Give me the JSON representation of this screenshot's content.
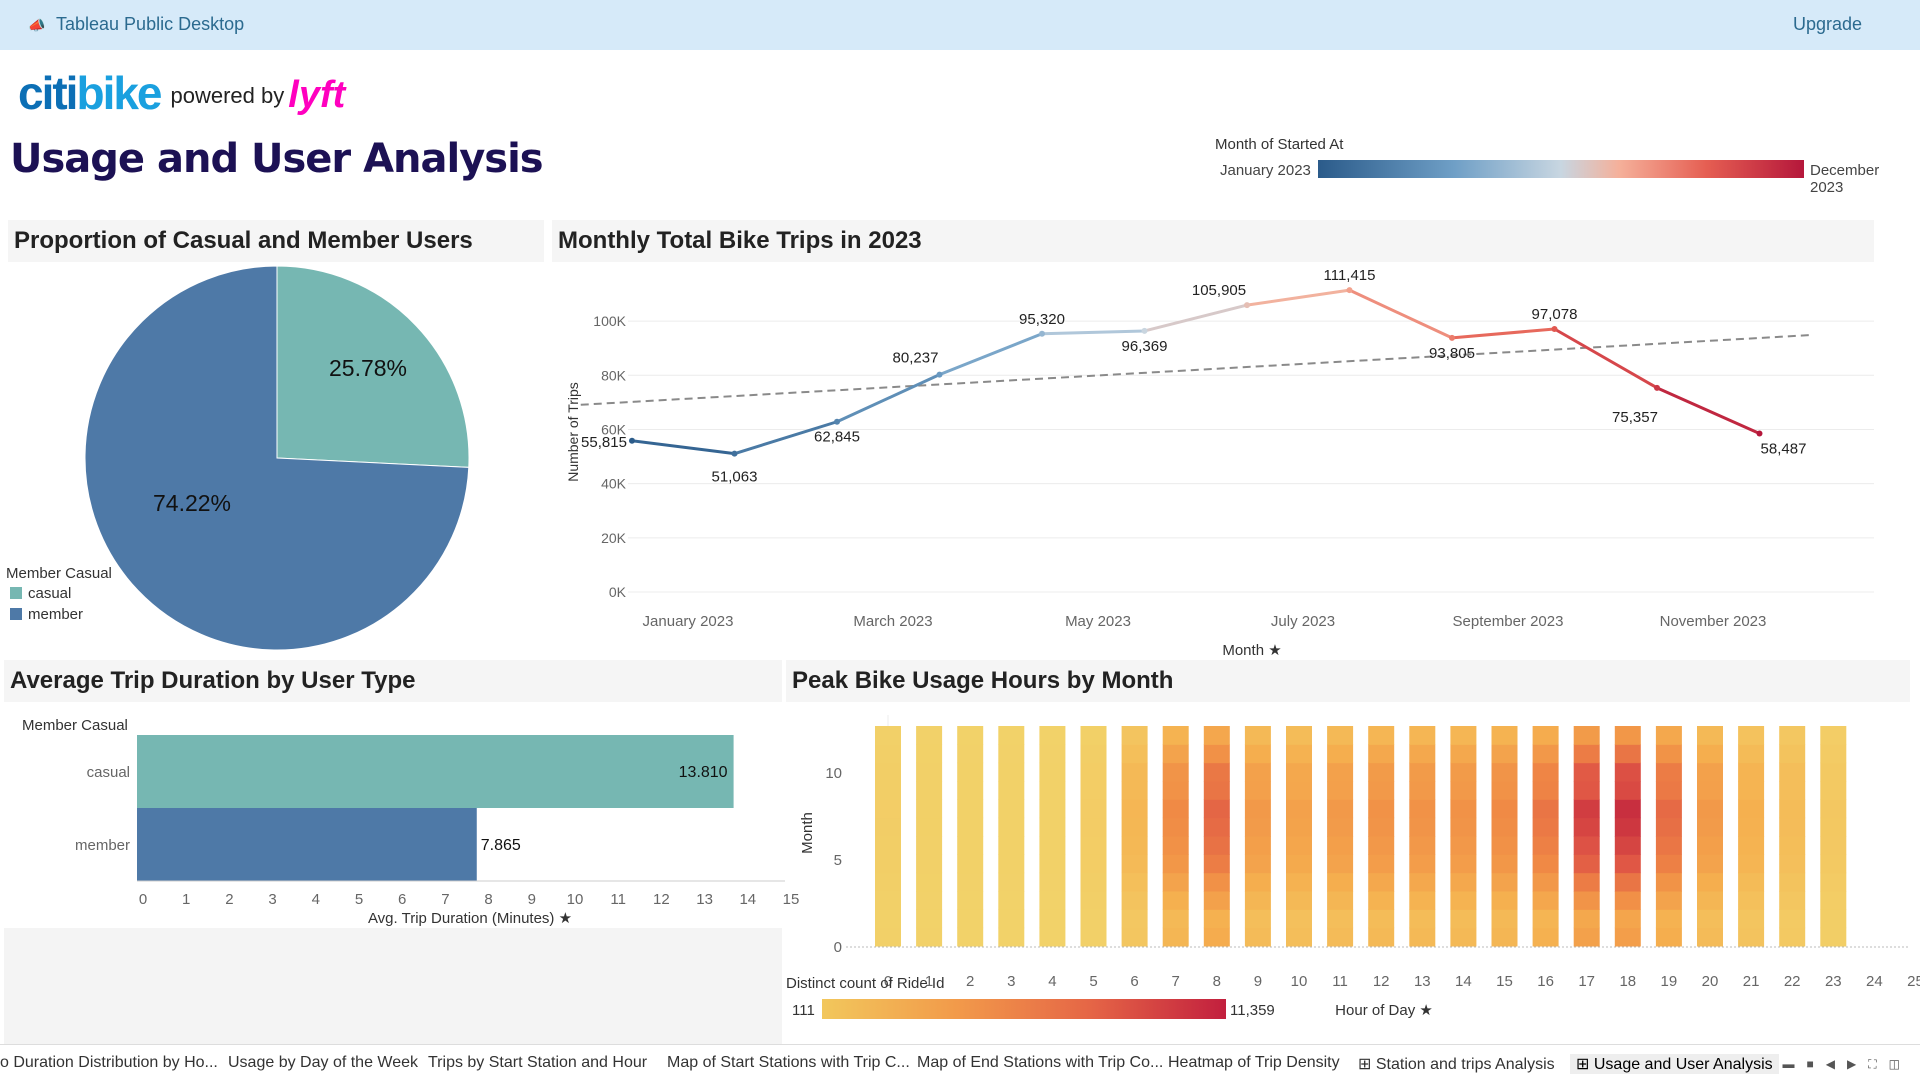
{
  "window": {
    "title": "Tableau Public Desktop",
    "upgrade_label": "Upgrade"
  },
  "logo": {
    "citi": "citi",
    "bike": "bike",
    "powered_by": "powered by",
    "lyft": "lyft"
  },
  "page_title": "Usage and User Analysis",
  "month_legend": {
    "title": "Month of Started At",
    "min_label": "January 2023",
    "max_label": "December 2023"
  },
  "panels": {
    "pie_title": "Proportion of Casual and Member Users",
    "line_title": "Monthly Total Bike Trips in 2023",
    "bar_title": "Average Trip Duration by User Type",
    "heat_title": "Peak Bike Usage Hours by Month"
  },
  "user_legend": {
    "title": "Member Casual",
    "items": [
      {
        "label": "casual",
        "color": "#76b7b2"
      },
      {
        "label": "member",
        "color": "#4e79a7"
      }
    ]
  },
  "colors": {
    "casual": "#76b7b2",
    "member": "#4e79a7",
    "trend": "#8a8a8a"
  },
  "chart_data": [
    {
      "type": "pie",
      "title": "Proportion of Casual and Member Users",
      "categories": [
        "casual",
        "member"
      ],
      "values": [
        25.78,
        74.22
      ],
      "labels": [
        "25.78%",
        "74.22%"
      ]
    },
    {
      "type": "line",
      "title": "Monthly Total Bike Trips in 2023",
      "xlabel": "Month",
      "ylabel": "Number of Trips",
      "x": [
        "January 2023",
        "February 2023",
        "March 2023",
        "April 2023",
        "May 2023",
        "June 2023",
        "July 2023",
        "August 2023",
        "September 2023",
        "October 2023",
        "November 2023",
        "December 2023"
      ],
      "x_ticks": [
        "January 2023",
        "March 2023",
        "May 2023",
        "July 2023",
        "September 2023",
        "November 2023"
      ],
      "values": [
        55815,
        51063,
        62845,
        80237,
        95320,
        96369,
        105905,
        111415,
        93805,
        97078,
        75357,
        58487
      ],
      "point_labels": [
        "55,815",
        "51,063",
        "62,845",
        "80,237",
        "95,320",
        "96,369",
        "105,905",
        "111,415",
        "93,805",
        "97,078",
        "75,357",
        "58,487"
      ],
      "y_ticks": [
        "0K",
        "20K",
        "40K",
        "60K",
        "80K",
        "100K"
      ],
      "ylim": [
        0,
        110000
      ],
      "trend_line": true
    },
    {
      "type": "bar",
      "title": "Average Trip Duration by User Type",
      "orientation": "horizontal",
      "categories": [
        "casual",
        "member"
      ],
      "values": [
        13.81,
        7.865
      ],
      "value_labels": [
        "13.810",
        "7.865"
      ],
      "xlabel": "Avg. Trip Duration (Minutes)",
      "row_header": "Member Casual",
      "x_ticks": [
        "0",
        "1",
        "2",
        "3",
        "4",
        "5",
        "6",
        "7",
        "8",
        "9",
        "10",
        "11",
        "12",
        "13",
        "14",
        "15"
      ],
      "xlim": [
        0,
        15
      ]
    },
    {
      "type": "heatmap",
      "title": "Peak Bike Usage Hours by Month",
      "xlabel": "Hour of Day",
      "ylabel": "Month",
      "x_ticks": [
        "0",
        "1",
        "2",
        "3",
        "4",
        "5",
        "6",
        "7",
        "8",
        "9",
        "10",
        "11",
        "12",
        "13",
        "14",
        "15",
        "16",
        "17",
        "18",
        "19",
        "20",
        "21",
        "22",
        "23",
        "24",
        "25"
      ],
      "y_ticks": [
        "0",
        "5",
        "10"
      ],
      "hours": [
        0,
        1,
        2,
        3,
        4,
        5,
        6,
        7,
        8,
        9,
        10,
        11,
        12,
        13,
        14,
        15,
        16,
        17,
        18,
        19,
        20,
        21,
        22,
        23
      ],
      "months": [
        1,
        2,
        3,
        4,
        5,
        6,
        7,
        8,
        9,
        10,
        11,
        12
      ],
      "hour_intensity": [
        0.05,
        0.03,
        0.02,
        0.02,
        0.02,
        0.06,
        0.25,
        0.55,
        0.72,
        0.45,
        0.4,
        0.45,
        0.5,
        0.5,
        0.5,
        0.55,
        0.65,
        0.88,
        0.93,
        0.7,
        0.45,
        0.3,
        0.2,
        0.1
      ],
      "month_intensity": [
        0.45,
        0.4,
        0.55,
        0.7,
        0.85,
        0.92,
        0.97,
        1.0,
        0.9,
        0.88,
        0.7,
        0.5
      ],
      "legend_title": "Distinct count of Ride Id",
      "legend_min": "111",
      "legend_max": "11,359"
    }
  ],
  "tabs": [
    {
      "label": "o Duration Distribution by Ho..."
    },
    {
      "label": "Usage by Day of the Week"
    },
    {
      "label": "Trips by Start Station and Hour"
    },
    {
      "label": "Map of Start Stations with Trip C..."
    },
    {
      "label": "Map of End Stations with Trip Co..."
    },
    {
      "label": "Heatmap of Trip Density"
    },
    {
      "label": "Station and trips Analysis",
      "icon": "dashboard-icon"
    },
    {
      "label": "Usage and User Analysis",
      "icon": "dashboard-icon",
      "active": true
    }
  ]
}
